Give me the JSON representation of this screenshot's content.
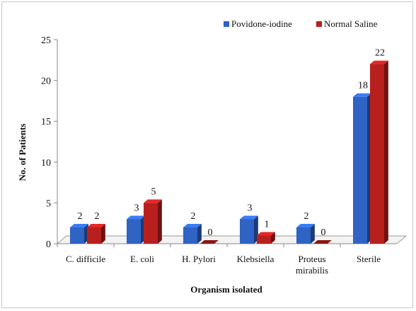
{
  "chart_data": {
    "type": "bar",
    "title": "",
    "xlabel": "Organism isolated",
    "ylabel": "No. of Patients",
    "ylim": [
      0,
      25
    ],
    "yticks": [
      0,
      5,
      10,
      15,
      20,
      25
    ],
    "categories": [
      "C. difficile",
      "E. coli",
      "H. Pylori",
      "Klebsiella",
      "Proteus mirabilis",
      "Sterile"
    ],
    "series": [
      {
        "name": "Povidone-iodine",
        "color": "#2f63c4",
        "values": [
          2,
          3,
          2,
          3,
          2,
          18
        ]
      },
      {
        "name": "Normal Saline",
        "color": "#b8201e",
        "values": [
          2,
          5,
          0,
          1,
          0,
          22
        ]
      }
    ],
    "grid": false,
    "legend_position": "top-right"
  }
}
